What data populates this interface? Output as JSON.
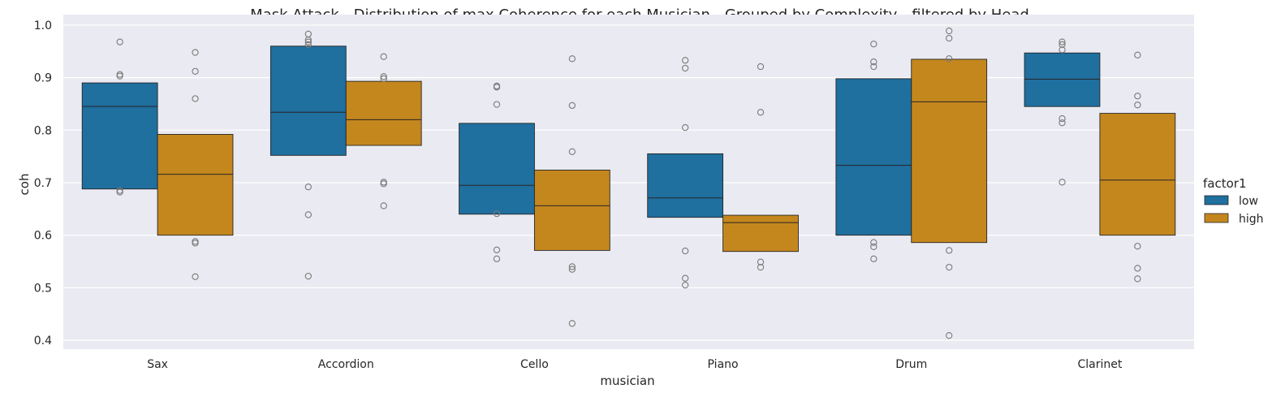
{
  "chart_data": {
    "type": "boxplot",
    "title": "Mask Attack  - Distribution of max Coherence for each Musician - Grouped by Complexity - filtered by Head",
    "xlabel": "musician",
    "ylabel": "coh",
    "ylim": [
      0.383,
      1.02
    ],
    "yticks": [
      "0.4",
      "0.5",
      "0.6",
      "0.7",
      "0.8",
      "0.9",
      "1.0"
    ],
    "categories": [
      "Sax",
      "Accordion",
      "Cello",
      "Piano",
      "Drum",
      "Clarinet"
    ],
    "legend": {
      "title": "factor1",
      "placement": "right",
      "entries": [
        "low",
        "high"
      ]
    },
    "grid": true,
    "series": [
      {
        "name": "low",
        "color": "#1f6f9f",
        "boxes": [
          {
            "q1": 0.688,
            "median": 0.845,
            "q3": 0.89,
            "fliers": [
              0.968,
              0.906,
              0.903,
              0.685,
              0.682
            ]
          },
          {
            "q1": 0.752,
            "median": 0.834,
            "q3": 0.96,
            "fliers": [
              0.983,
              0.972,
              0.968,
              0.963,
              0.692,
              0.639,
              0.522
            ]
          },
          {
            "q1": 0.64,
            "median": 0.695,
            "q3": 0.813,
            "fliers": [
              0.884,
              0.882,
              0.849,
              0.641,
              0.572,
              0.555
            ]
          },
          {
            "q1": 0.634,
            "median": 0.671,
            "q3": 0.755,
            "fliers": [
              0.933,
              0.918,
              0.805,
              0.57,
              0.518,
              0.505
            ]
          },
          {
            "q1": 0.6,
            "median": 0.733,
            "q3": 0.898,
            "fliers": [
              0.964,
              0.93,
              0.921,
              0.586,
              0.578,
              0.555
            ]
          },
          {
            "q1": 0.845,
            "median": 0.897,
            "q3": 0.947,
            "fliers": [
              0.968,
              0.963,
              0.953,
              0.822,
              0.814,
              0.701
            ]
          }
        ]
      },
      {
        "name": "high",
        "color": "#c4871e",
        "boxes": [
          {
            "q1": 0.6,
            "median": 0.716,
            "q3": 0.792,
            "fliers": [
              0.948,
              0.912,
              0.86,
              0.588,
              0.585,
              0.521
            ]
          },
          {
            "q1": 0.771,
            "median": 0.82,
            "q3": 0.893,
            "fliers": [
              0.94,
              0.902,
              0.898,
              0.701,
              0.698,
              0.656
            ]
          },
          {
            "q1": 0.571,
            "median": 0.656,
            "q3": 0.724,
            "fliers": [
              0.936,
              0.847,
              0.759,
              0.54,
              0.535,
              0.432
            ]
          },
          {
            "q1": 0.569,
            "median": 0.624,
            "q3": 0.638,
            "fliers": [
              0.921,
              0.834,
              0.549,
              0.539
            ]
          },
          {
            "q1": 0.586,
            "median": 0.854,
            "q3": 0.935,
            "fliers": [
              0.989,
              0.975,
              0.936,
              0.571,
              0.539,
              0.409
            ]
          },
          {
            "q1": 0.6,
            "median": 0.705,
            "q3": 0.832,
            "fliers": [
              0.943,
              0.865,
              0.848,
              0.579,
              0.537,
              0.517
            ]
          }
        ]
      }
    ]
  }
}
